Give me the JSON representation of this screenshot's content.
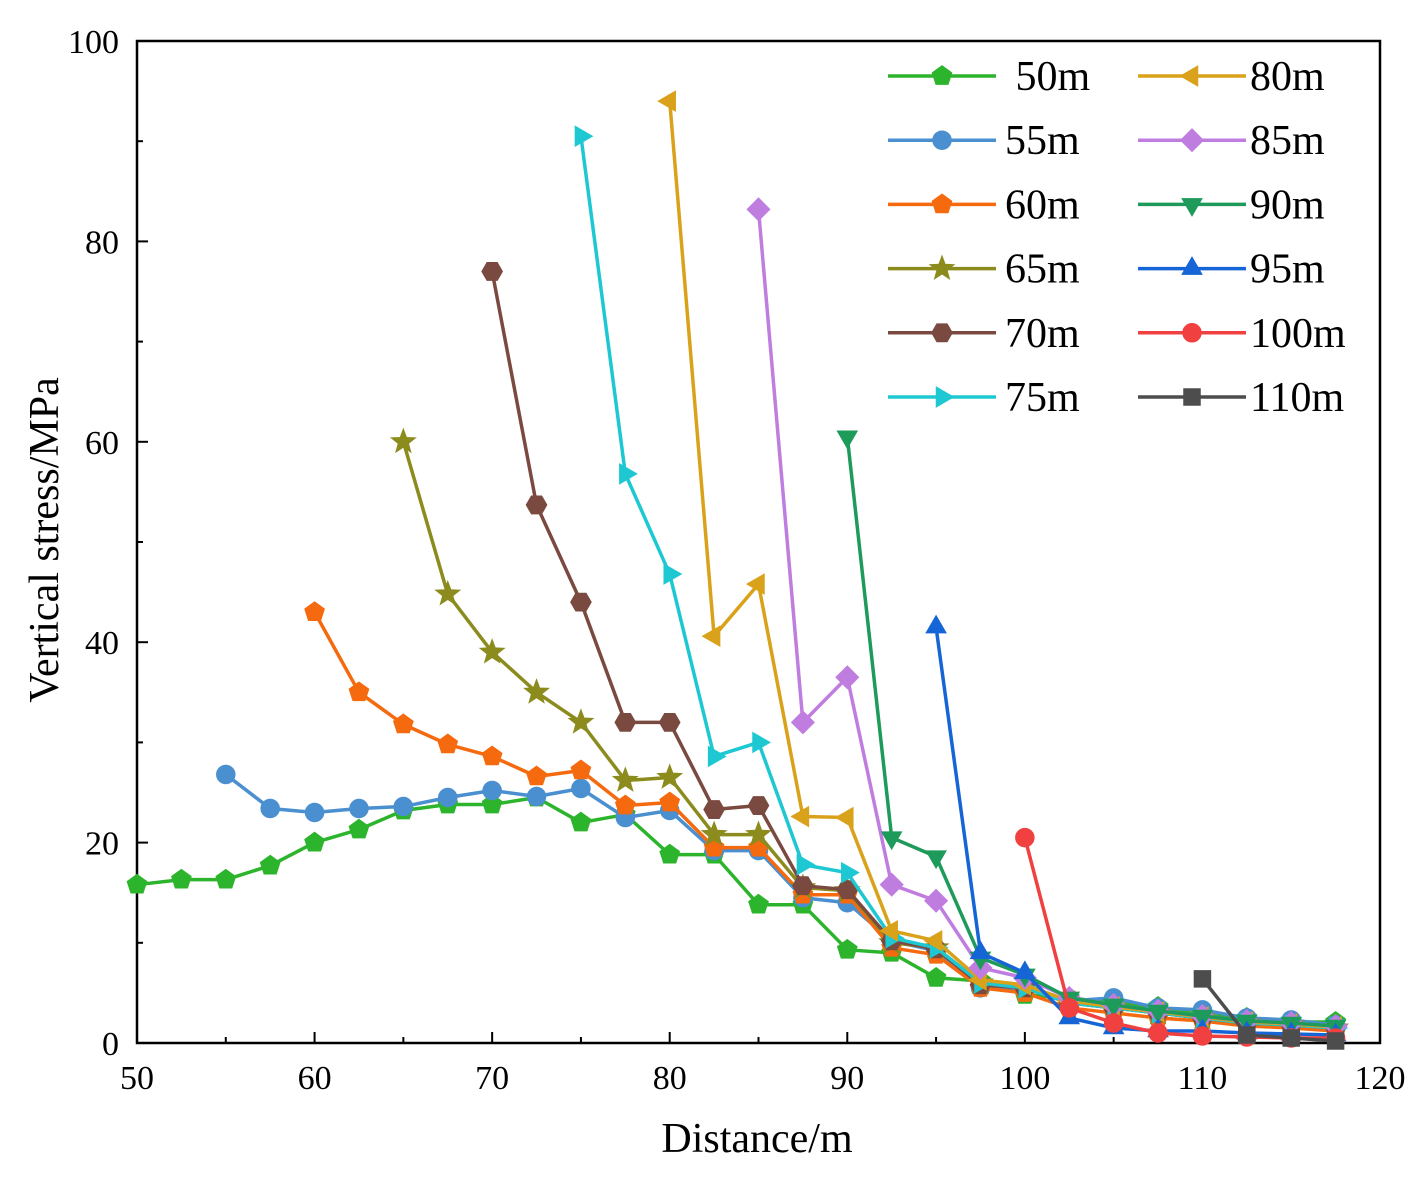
{
  "chart_data": {
    "type": "line",
    "title": "",
    "xlabel": "Distance/m",
    "ylabel": "Vertical stress/MPa",
    "xlim": [
      50,
      120
    ],
    "ylim": [
      0,
      100
    ],
    "xticks": [
      50,
      60,
      70,
      80,
      90,
      100,
      110,
      120
    ],
    "yticks": [
      0,
      20,
      40,
      60,
      80,
      100
    ],
    "grid": false,
    "legend_position": "top-right",
    "series": [
      {
        "name": " 50m",
        "color": "#2db42d",
        "marker": "pentagon",
        "points": [
          [
            50,
            15.8
          ],
          [
            52.5,
            16.3
          ],
          [
            55,
            16.3
          ],
          [
            57.5,
            17.7
          ],
          [
            60,
            20
          ],
          [
            62.5,
            21.3
          ],
          [
            65,
            23.2
          ],
          [
            67.5,
            23.8
          ],
          [
            70,
            23.8
          ],
          [
            72.5,
            24.5
          ],
          [
            75,
            22
          ],
          [
            77.5,
            22.8
          ],
          [
            80,
            18.8
          ],
          [
            82.5,
            18.8
          ],
          [
            85,
            13.8
          ],
          [
            87.5,
            13.8
          ],
          [
            90,
            9.3
          ],
          [
            92.5,
            9
          ],
          [
            95,
            6.5
          ],
          [
            97.5,
            6.2
          ],
          [
            100,
            4.8
          ],
          [
            102.5,
            4.5
          ],
          [
            105,
            4
          ],
          [
            107.5,
            3.6
          ],
          [
            110,
            2.8
          ],
          [
            112.5,
            2.5
          ],
          [
            115,
            2.1
          ],
          [
            117.5,
            2.1
          ]
        ]
      },
      {
        "name": "55m",
        "color": "#4a8fcf",
        "marker": "circle",
        "points": [
          [
            55,
            26.8
          ],
          [
            57.5,
            23.4
          ],
          [
            60,
            23
          ],
          [
            62.5,
            23.4
          ],
          [
            65,
            23.6
          ],
          [
            67.5,
            24.5
          ],
          [
            70,
            25.2
          ],
          [
            72.5,
            24.6
          ],
          [
            75,
            25.4
          ],
          [
            77.5,
            22.5
          ],
          [
            80,
            23.2
          ],
          [
            82.5,
            19.2
          ],
          [
            85,
            19.2
          ],
          [
            87.5,
            14.5
          ],
          [
            90,
            14
          ],
          [
            92.5,
            10.2
          ],
          [
            95,
            9.2
          ],
          [
            97.5,
            5.5
          ],
          [
            100,
            5.5
          ],
          [
            102.5,
            4.2
          ],
          [
            105,
            4.5
          ],
          [
            107.5,
            3.5
          ],
          [
            110,
            3.3
          ],
          [
            112.5,
            2.5
          ],
          [
            115,
            2.3
          ],
          [
            117.5,
            1.8
          ]
        ]
      },
      {
        "name": "60m",
        "color": "#f56a0f",
        "marker": "pentagon",
        "points": [
          [
            60,
            43
          ],
          [
            62.5,
            35
          ],
          [
            65,
            31.8
          ],
          [
            67.5,
            29.8
          ],
          [
            70,
            28.6
          ],
          [
            72.5,
            26.6
          ],
          [
            75,
            27.2
          ],
          [
            77.5,
            23.7
          ],
          [
            80,
            24
          ],
          [
            82.5,
            19.5
          ],
          [
            85,
            19.5
          ],
          [
            87.5,
            14.8
          ],
          [
            90,
            14.8
          ],
          [
            92.5,
            9.5
          ],
          [
            95,
            8.8
          ],
          [
            97.5,
            5.5
          ],
          [
            100,
            5
          ],
          [
            102.5,
            3.5
          ],
          [
            105,
            3
          ],
          [
            107.5,
            2.5
          ],
          [
            110,
            2.2
          ],
          [
            112.5,
            1.7
          ],
          [
            115,
            1.5
          ],
          [
            117.5,
            1.2
          ]
        ]
      },
      {
        "name": "65m",
        "color": "#8c8c1e",
        "marker": "star",
        "points": [
          [
            65,
            60
          ],
          [
            67.5,
            44.8
          ],
          [
            70,
            39
          ],
          [
            72.5,
            35
          ],
          [
            75,
            32
          ],
          [
            77.5,
            26.2
          ],
          [
            80,
            26.5
          ],
          [
            82.5,
            20.8
          ],
          [
            85,
            20.8
          ],
          [
            87.5,
            15.5
          ],
          [
            90,
            15.2
          ],
          [
            92.5,
            10
          ],
          [
            95,
            9.5
          ],
          [
            97.5,
            6
          ],
          [
            100,
            5.5
          ],
          [
            102.5,
            4
          ],
          [
            105,
            3.5
          ],
          [
            107.5,
            3
          ],
          [
            110,
            2.5
          ],
          [
            112.5,
            2
          ],
          [
            115,
            1.8
          ],
          [
            117.5,
            1.5
          ]
        ]
      },
      {
        "name": "70m",
        "color": "#7a4a40",
        "marker": "hexagon",
        "points": [
          [
            70,
            77
          ],
          [
            72.5,
            53.7
          ],
          [
            75,
            44
          ],
          [
            77.5,
            32
          ],
          [
            80,
            32
          ],
          [
            82.5,
            23.3
          ],
          [
            85,
            23.7
          ],
          [
            87.5,
            15.7
          ],
          [
            90,
            15.3
          ],
          [
            92.5,
            10.2
          ],
          [
            95,
            9.4
          ],
          [
            97.5,
            5.8
          ],
          [
            100,
            5.5
          ],
          [
            102.5,
            4
          ],
          [
            105,
            3.5
          ],
          [
            107.5,
            3
          ],
          [
            110,
            2.5
          ],
          [
            112.5,
            2
          ],
          [
            115,
            1.8
          ],
          [
            117.5,
            1.5
          ]
        ]
      },
      {
        "name": "75m",
        "color": "#1ec8d2",
        "marker": "triangle-right",
        "points": [
          [
            75,
            90.5
          ],
          [
            77.5,
            56.8
          ],
          [
            80,
            46.8
          ],
          [
            82.5,
            28.6
          ],
          [
            85,
            30
          ],
          [
            87.5,
            17.8
          ],
          [
            90,
            17
          ],
          [
            92.5,
            10.5
          ],
          [
            95,
            9.5
          ],
          [
            97.5,
            6
          ],
          [
            100,
            5.5
          ],
          [
            102.5,
            4
          ],
          [
            105,
            3.5
          ],
          [
            107.5,
            3
          ],
          [
            110,
            2.5
          ],
          [
            112.5,
            2
          ],
          [
            115,
            1.8
          ],
          [
            117.5,
            1.5
          ]
        ]
      },
      {
        "name": "80m",
        "color": "#d9a21a",
        "marker": "triangle-left",
        "points": [
          [
            80,
            94
          ],
          [
            82.5,
            40.6
          ],
          [
            85,
            45.8
          ],
          [
            87.5,
            22.6
          ],
          [
            90,
            22.5
          ],
          [
            92.5,
            11.2
          ],
          [
            95,
            10.2
          ],
          [
            97.5,
            6.3
          ],
          [
            100,
            5.8
          ],
          [
            102.5,
            4.2
          ],
          [
            105,
            3.6
          ],
          [
            107.5,
            3.1
          ],
          [
            110,
            2.6
          ],
          [
            112.5,
            2.1
          ],
          [
            115,
            1.9
          ],
          [
            117.5,
            1.6
          ]
        ]
      },
      {
        "name": "85m",
        "color": "#c07de0",
        "marker": "diamond",
        "points": [
          [
            85,
            83.2
          ],
          [
            87.5,
            32
          ],
          [
            90,
            36.5
          ],
          [
            92.5,
            15.8
          ],
          [
            95,
            14.2
          ],
          [
            97.5,
            7.5
          ],
          [
            100,
            6.5
          ],
          [
            102.5,
            4.5
          ],
          [
            105,
            3.8
          ],
          [
            107.5,
            3.2
          ],
          [
            110,
            2.7
          ],
          [
            112.5,
            2.2
          ],
          [
            115,
            2
          ],
          [
            117.5,
            1.7
          ]
        ]
      },
      {
        "name": "90m",
        "color": "#1e9a5a",
        "marker": "triangle-down",
        "points": [
          [
            90,
            60.5
          ],
          [
            92.5,
            20.5
          ],
          [
            95,
            18.6
          ],
          [
            97.5,
            8.5
          ],
          [
            100,
            6.8
          ],
          [
            102.5,
            4.5
          ],
          [
            105,
            3.8
          ],
          [
            107.5,
            3.2
          ],
          [
            110,
            2.7
          ],
          [
            112.5,
            2.2
          ],
          [
            115,
            2
          ],
          [
            117.5,
            1.7
          ]
        ]
      },
      {
        "name": "95m",
        "color": "#1565d6",
        "marker": "triangle-up",
        "points": [
          [
            95,
            41.5
          ],
          [
            97.5,
            9
          ],
          [
            100,
            7
          ],
          [
            102.5,
            2.5
          ],
          [
            105,
            1.5
          ],
          [
            107.5,
            1.2
          ],
          [
            110,
            1.2
          ],
          [
            112.5,
            1
          ],
          [
            115,
            0.9
          ],
          [
            117.5,
            0.8
          ]
        ]
      },
      {
        "name": "100m",
        "color": "#f04040",
        "marker": "circle",
        "points": [
          [
            100,
            20.5
          ],
          [
            102.5,
            3.5
          ],
          [
            105,
            2
          ],
          [
            107.5,
            1
          ],
          [
            110,
            0.7
          ],
          [
            112.5,
            0.6
          ],
          [
            115,
            0.5
          ],
          [
            117.5,
            0.5
          ]
        ]
      },
      {
        "name": "110m",
        "color": "#4d4d4d",
        "marker": "square",
        "points": [
          [
            110,
            6.4
          ],
          [
            112.5,
            0.8
          ],
          [
            115,
            0.5
          ],
          [
            117.5,
            0.2
          ]
        ]
      }
    ]
  }
}
